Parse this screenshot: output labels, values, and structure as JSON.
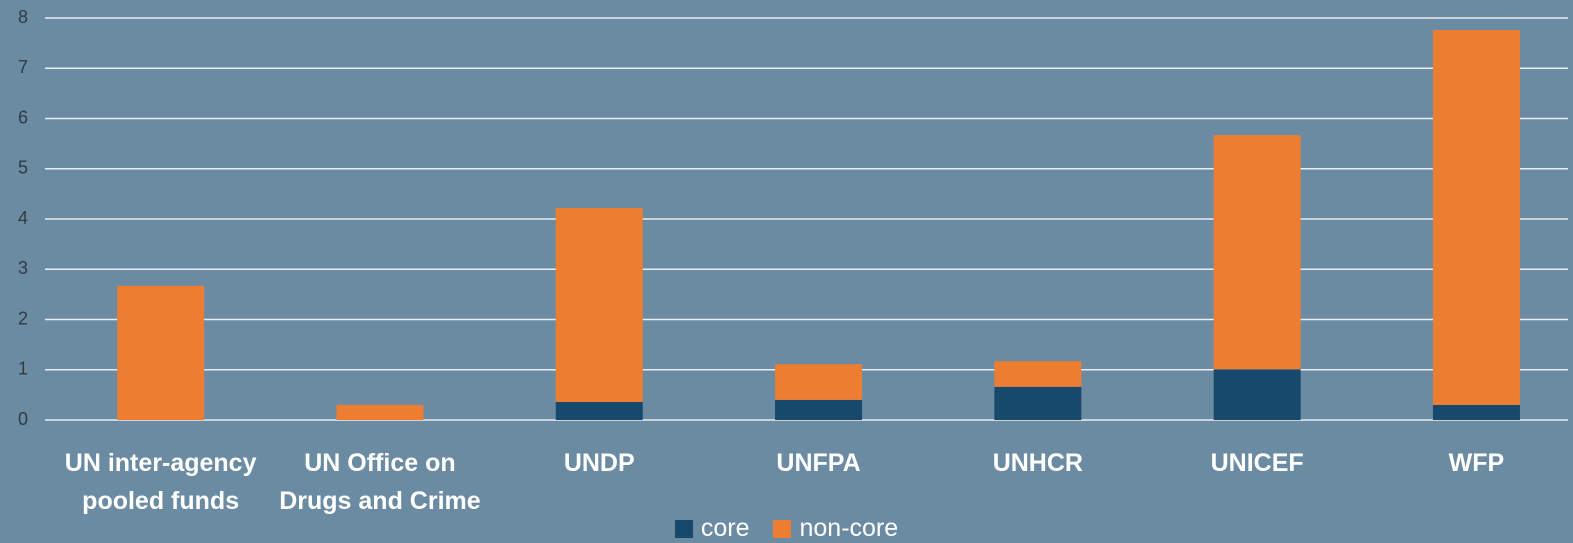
{
  "chart_data": {
    "type": "stacked_bar",
    "categories": [
      "UN inter-agency pooled funds",
      "UN Office on Drugs and Crime",
      "UNDP",
      "UNFPA",
      "UNHCR",
      "UNICEF",
      "WFP"
    ],
    "series": [
      {
        "name": "core",
        "color": "#17496c",
        "values": [
          0,
          0,
          0.36,
          0.4,
          0.66,
          1.01,
          0.3
        ]
      },
      {
        "name": "non-core",
        "color": "#ed7d31",
        "values": [
          2.67,
          0.3,
          3.86,
          0.71,
          0.51,
          4.66,
          7.46
        ]
      }
    ],
    "ylim": [
      0,
      8
    ],
    "yticks": [
      0,
      1,
      2,
      3,
      4,
      5,
      6,
      7,
      8
    ],
    "grid": true
  }
}
